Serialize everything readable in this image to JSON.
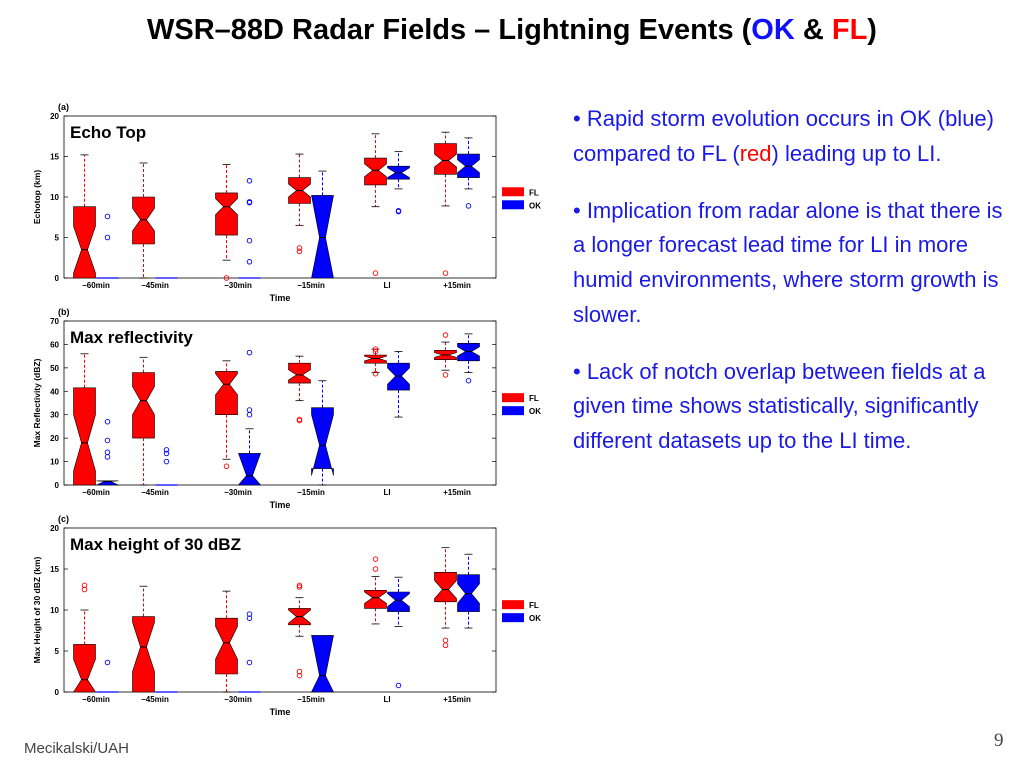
{
  "slide": {
    "title_prefix": "WSR–88D Radar Fields – Lightning Events (",
    "title_ok": "OK",
    "title_amp": " & ",
    "title_fl": "FL",
    "title_suffix": ")",
    "footer": "Mecikalski/UAH",
    "page_number": "9"
  },
  "bullets": {
    "b1_pre": "• Rapid storm evolution occurs in OK (blue) compared to FL (",
    "b1_red": "red",
    "b1_post": ") leading up to LI.",
    "b2": "• Implication from radar alone is that there is a longer forecast lead time for LI in more humid environments, where storm growth is slower.",
    "b3": "• Lack of notch overlap between fields at a given time shows statistically, significantly different datasets up to the LI time."
  },
  "colors": {
    "fl": "#ff0000",
    "ok": "#0000ff",
    "median": "#000000"
  },
  "chart_data": [
    {
      "type": "boxplot",
      "panel_label": "(a)",
      "annotation": "Echo Top",
      "xlabel": "Time",
      "ylabel": "Echotop (km)",
      "ylim": [
        0,
        20
      ],
      "yticks": [
        0,
        5,
        10,
        15,
        20
      ],
      "categories": [
        "−60min",
        "−45min",
        "−30min",
        "−15min",
        "LI",
        "+15min"
      ],
      "legend": [
        "FL",
        "OK"
      ],
      "legend_position": "right",
      "series": [
        {
          "name": "FL",
          "boxes": [
            {
              "low": 0,
              "q1": 0,
              "median": 3.5,
              "q3": 8.8,
              "high": 15.2,
              "notch": [
                0.6,
                6.4
              ],
              "outliers": []
            },
            {
              "low": 0,
              "q1": 4.2,
              "median": 7.2,
              "q3": 10.0,
              "high": 14.2,
              "notch": [
                5.8,
                8.6
              ],
              "outliers": []
            },
            {
              "low": 2.2,
              "q1": 5.3,
              "median": 8.8,
              "q3": 10.5,
              "high": 14.0,
              "notch": [
                7.8,
                9.8
              ],
              "outliers": [
                0
              ]
            },
            {
              "low": 6.5,
              "q1": 9.2,
              "median": 10.8,
              "q3": 12.4,
              "high": 15.3,
              "notch": [
                10.0,
                11.6
              ],
              "outliers": [
                3.7,
                3.3
              ]
            },
            {
              "low": 8.8,
              "q1": 11.5,
              "median": 13.3,
              "q3": 14.8,
              "high": 17.8,
              "notch": [
                12.5,
                14.1
              ],
              "outliers": [
                0.6
              ]
            },
            {
              "low": 8.9,
              "q1": 12.8,
              "median": 14.5,
              "q3": 16.6,
              "high": 18.0,
              "notch": [
                13.7,
                15.3
              ],
              "outliers": [
                0.6
              ]
            }
          ]
        },
        {
          "name": "OK",
          "boxes": [
            {
              "low": 0,
              "q1": 0,
              "median": 0,
              "q3": 0,
              "high": 0,
              "notch": [
                0,
                0
              ],
              "outliers": [
                7.6,
                5.0
              ]
            },
            {
              "low": 0,
              "q1": 0,
              "median": 0,
              "q3": 0,
              "high": 0,
              "notch": [
                0,
                0
              ],
              "outliers": []
            },
            {
              "low": 0,
              "q1": 0,
              "median": 0,
              "q3": 0,
              "high": 0,
              "notch": [
                0,
                0
              ],
              "outliers": [
                12.0,
                9.4,
                9.3,
                4.6,
                2.0
              ]
            },
            {
              "low": 0,
              "q1": 0,
              "median": 5.0,
              "q3": 10.2,
              "high": 13.2,
              "notch": [
                0,
                10.2
              ],
              "outliers": []
            },
            {
              "low": 11.0,
              "q1": 12.2,
              "median": 13.0,
              "q3": 13.8,
              "high": 15.6,
              "notch": [
                12.4,
                13.6
              ],
              "outliers": [
                8.3,
                8.2
              ]
            },
            {
              "low": 11.0,
              "q1": 12.4,
              "median": 13.8,
              "q3": 15.3,
              "high": 17.3,
              "notch": [
                13.0,
                14.6
              ],
              "outliers": [
                8.9
              ]
            }
          ]
        }
      ]
    },
    {
      "type": "boxplot",
      "panel_label": "(b)",
      "annotation": "Max reflectivity",
      "xlabel": "Time",
      "ylabel": "Max Reflectivity (dBZ)",
      "ylim": [
        0,
        70
      ],
      "yticks": [
        0,
        10,
        20,
        30,
        40,
        50,
        60,
        70
      ],
      "categories": [
        "−60min",
        "−45min",
        "−30min",
        "−15min",
        "LI",
        "+15min"
      ],
      "legend": [
        "FL",
        "OK"
      ],
      "legend_position": "right",
      "series": [
        {
          "name": "FL",
          "boxes": [
            {
              "low": 0,
              "q1": 0,
              "median": 18.0,
              "q3": 41.5,
              "high": 56.0,
              "notch": [
                6.0,
                30.0
              ],
              "outliers": []
            },
            {
              "low": 0,
              "q1": 20.0,
              "median": 36.0,
              "q3": 48.0,
              "high": 54.5,
              "notch": [
                30.0,
                42.0
              ],
              "outliers": []
            },
            {
              "low": 11.0,
              "q1": 30.0,
              "median": 43.0,
              "q3": 48.5,
              "high": 53.0,
              "notch": [
                38.5,
                47.5
              ],
              "outliers": [
                8.0
              ]
            },
            {
              "low": 36.0,
              "q1": 43.5,
              "median": 47.0,
              "q3": 52.0,
              "high": 55.0,
              "notch": [
                44.8,
                49.2
              ],
              "outliers": [
                28.0,
                27.5
              ]
            },
            {
              "low": 48.0,
              "q1": 52.0,
              "median": 54.0,
              "q3": 55.5,
              "high": 58.0,
              "notch": [
                53.0,
                55.0
              ],
              "outliers": [
                58.0,
                57.0,
                47.5
              ]
            },
            {
              "low": 49.0,
              "q1": 53.5,
              "median": 55.5,
              "q3": 57.5,
              "high": 61.0,
              "notch": [
                54.5,
                56.5
              ],
              "outliers": [
                64.0,
                47.0
              ]
            }
          ]
        },
        {
          "name": "OK",
          "boxes": [
            {
              "low": 0,
              "q1": 0,
              "median": 1.5,
              "q3": 1.8,
              "high": 1.8,
              "notch": [
                0,
                1.8
              ],
              "outliers": [
                27.0,
                19.0,
                14.0,
                12.0
              ]
            },
            {
              "low": 0,
              "q1": 0,
              "median": 0,
              "q3": 0,
              "high": 0,
              "notch": [
                0,
                0
              ],
              "outliers": [
                15.0,
                13.5,
                10.0
              ]
            },
            {
              "low": 0,
              "q1": 0,
              "median": 4.0,
              "q3": 13.5,
              "high": 24.0,
              "notch": [
                0,
                13.5
              ],
              "outliers": [
                56.5,
                32.0,
                30.0
              ]
            },
            {
              "low": 0,
              "q1": 7.0,
              "median": 17.0,
              "q3": 33.0,
              "high": 44.5,
              "notch": [
                4.0,
                30.0
              ],
              "outliers": []
            },
            {
              "low": 29.0,
              "q1": 40.5,
              "median": 46.5,
              "q3": 52.0,
              "high": 57.0,
              "notch": [
                43.0,
                50.0
              ],
              "outliers": []
            },
            {
              "low": 48.0,
              "q1": 53.0,
              "median": 57.0,
              "q3": 60.5,
              "high": 64.5,
              "notch": [
                55.0,
                59.0
              ],
              "outliers": [
                44.5
              ]
            }
          ]
        }
      ]
    },
    {
      "type": "boxplot",
      "panel_label": "(c)",
      "annotation": "Max height of 30 dBZ",
      "xlabel": "Time",
      "ylabel": "Max Height of 30 dBZ (km)",
      "ylim": [
        0,
        20
      ],
      "yticks": [
        0,
        5,
        10,
        15,
        20
      ],
      "categories": [
        "−60min",
        "−45min",
        "−30min",
        "−15min",
        "LI",
        "+15min"
      ],
      "legend": [
        "FL",
        "OK"
      ],
      "legend_position": "right",
      "series": [
        {
          "name": "FL",
          "boxes": [
            {
              "low": 0,
              "q1": 0,
              "median": 1.5,
              "q3": 5.8,
              "high": 10.0,
              "notch": [
                0,
                4.0
              ],
              "outliers": [
                13.0,
                12.5
              ]
            },
            {
              "low": 0,
              "q1": 0,
              "median": 5.5,
              "q3": 9.2,
              "high": 12.9,
              "notch": [
                2.5,
                8.5
              ],
              "outliers": []
            },
            {
              "low": 0,
              "q1": 2.2,
              "median": 6.0,
              "q3": 9.0,
              "high": 12.3,
              "notch": [
                4.0,
                8.0
              ],
              "outliers": []
            },
            {
              "low": 6.8,
              "q1": 8.2,
              "median": 9.2,
              "q3": 10.2,
              "high": 11.5,
              "notch": [
                8.4,
                10.0
              ],
              "outliers": [
                13.0,
                12.8,
                2.5,
                2.0
              ]
            },
            {
              "low": 8.3,
              "q1": 10.2,
              "median": 11.5,
              "q3": 12.4,
              "high": 14.1,
              "notch": [
                10.8,
                12.2
              ],
              "outliers": [
                16.2,
                15.0
              ]
            },
            {
              "low": 7.8,
              "q1": 11.0,
              "median": 12.5,
              "q3": 14.6,
              "high": 17.6,
              "notch": [
                11.4,
                13.6
              ],
              "outliers": [
                6.3,
                5.7
              ]
            }
          ]
        },
        {
          "name": "OK",
          "boxes": [
            {
              "low": 0,
              "q1": 0,
              "median": 0,
              "q3": 0,
              "high": 0,
              "notch": [
                0,
                0
              ],
              "outliers": [
                3.6
              ]
            },
            {
              "low": 0,
              "q1": 0,
              "median": 0,
              "q3": 0,
              "high": 0,
              "notch": [
                0,
                0
              ],
              "outliers": []
            },
            {
              "low": 0,
              "q1": 0,
              "median": 0,
              "q3": 0,
              "high": 0,
              "notch": [
                0,
                0
              ],
              "outliers": [
                9.5,
                9.0,
                3.6
              ]
            },
            {
              "low": 0,
              "q1": 0,
              "median": 2.0,
              "q3": 6.9,
              "high": 6.9,
              "notch": [
                0,
                6.9
              ],
              "outliers": []
            },
            {
              "low": 8.0,
              "q1": 9.8,
              "median": 11.2,
              "q3": 12.2,
              "high": 14.0,
              "notch": [
                10.4,
                12.0
              ],
              "outliers": [
                0.8
              ]
            },
            {
              "low": 7.8,
              "q1": 9.8,
              "median": 12.0,
              "q3": 14.3,
              "high": 16.8,
              "notch": [
                10.8,
                13.2
              ],
              "outliers": []
            }
          ]
        }
      ]
    }
  ]
}
